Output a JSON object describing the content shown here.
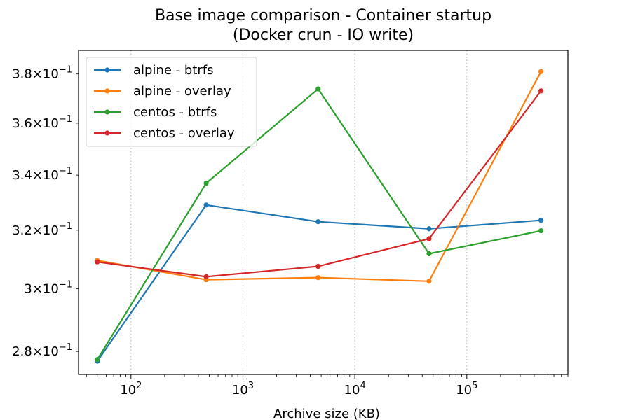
{
  "chart_data": {
    "type": "line",
    "title": "Base image comparison - Container startup",
    "subtitle": "(Docker crun - IO write)",
    "xlabel": "Archive size (KB)",
    "ylabel": "",
    "xscale": "log",
    "yscale": "log",
    "xlim": [
      34,
      800000
    ],
    "ylim": [
      0.273,
      0.39
    ],
    "grid": "x-major dotted",
    "legend": "top-left",
    "x": [
      50,
      470,
      4700,
      46000,
      460000
    ],
    "x_ticks": [
      {
        "value": 100,
        "base": "10",
        "exp": "2"
      },
      {
        "value": 1000,
        "base": "10",
        "exp": "3"
      },
      {
        "value": 10000,
        "base": "10",
        "exp": "4"
      },
      {
        "value": 100000,
        "base": "10",
        "exp": "5"
      }
    ],
    "y_ticks": [
      {
        "value": 0.28,
        "mant": "2.8",
        "base": "10",
        "exp": "−1"
      },
      {
        "value": 0.3,
        "mant": "3",
        "base": "10",
        "exp": "−1"
      },
      {
        "value": 0.32,
        "mant": "3.2",
        "base": "10",
        "exp": "−1"
      },
      {
        "value": 0.34,
        "mant": "3.4",
        "base": "10",
        "exp": "−1"
      },
      {
        "value": 0.36,
        "mant": "3.6",
        "base": "10",
        "exp": "−1"
      },
      {
        "value": 0.38,
        "mant": "3.8",
        "base": "10",
        "exp": "−1"
      }
    ],
    "series": [
      {
        "name": "alpine - btrfs",
        "color": "#1f77b4",
        "values": [
          0.277,
          0.329,
          0.323,
          0.3205,
          0.3235
        ]
      },
      {
        "name": "alpine - overlay",
        "color": "#ff7f0e",
        "values": [
          0.3095,
          0.303,
          0.3037,
          0.3025,
          0.381
        ]
      },
      {
        "name": "centos - btrfs",
        "color": "#2ca02c",
        "values": [
          0.2775,
          0.337,
          0.3738,
          0.3118,
          0.3198
        ]
      },
      {
        "name": "centos - overlay",
        "color": "#d62728",
        "values": [
          0.309,
          0.304,
          0.3075,
          0.317,
          0.373
        ]
      }
    ]
  }
}
